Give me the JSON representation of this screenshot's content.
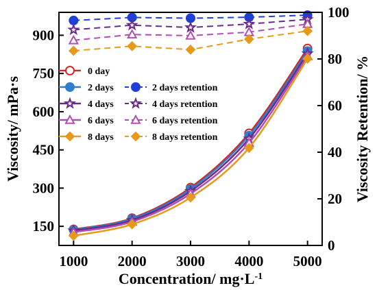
{
  "chart_data": {
    "type": "line",
    "xlabel": "Concentration/ mg·L",
    "xlabel_sup": "-1",
    "ylabel_left": "Viscosity/ mPa·s",
    "ylabel_right": "Viscosity Retention/ %",
    "x": [
      1000,
      2000,
      3000,
      4000,
      5000
    ],
    "x_ticks": [
      "1000",
      "2000",
      "3000",
      "4000",
      "5000"
    ],
    "xlim": [
      750,
      5250
    ],
    "ylim_left": [
      75,
      990
    ],
    "y_ticks_left": [
      "150",
      "300",
      "450",
      "600",
      "750",
      "900"
    ],
    "ylim_right": [
      0,
      100
    ],
    "y_ticks_right": [
      "0",
      "20",
      "40",
      "60",
      "80",
      "100"
    ],
    "grid": false,
    "legend_position": "center-left",
    "series": [
      {
        "name": "0 day",
        "axis": "left",
        "color": "#cc2a2a",
        "marker": "circle-open",
        "dash": false,
        "values": [
          138,
          182,
          302,
          515,
          848
        ]
      },
      {
        "name": "2 days",
        "axis": "left",
        "color": "#2c7fc8",
        "marker": "circle",
        "dash": false,
        "values": [
          136,
          179,
          296,
          506,
          838
        ]
      },
      {
        "name": "4 days",
        "axis": "left",
        "color": "#6a2a8a",
        "marker": "star-open",
        "dash": false,
        "values": [
          133,
          174,
          288,
          494,
          828
        ]
      },
      {
        "name": "6 days",
        "axis": "left",
        "color": "#b14cb5",
        "marker": "triangle-open",
        "dash": false,
        "values": [
          127,
          168,
          278,
          478,
          818
        ]
      },
      {
        "name": "8 days",
        "axis": "left",
        "color": "#e79a1a",
        "marker": "diamond",
        "dash": false,
        "values": [
          113,
          158,
          263,
          458,
          808
        ]
      },
      {
        "name": "2 days retention",
        "axis": "right",
        "color": "#1f3fd6",
        "marker": "circle",
        "dash": true,
        "values": [
          96.5,
          97.8,
          97.5,
          97.9,
          98.8
        ]
      },
      {
        "name": "4 days retention",
        "axis": "right",
        "color": "#6a2a8a",
        "marker": "star-open",
        "dash": true,
        "values": [
          92.5,
          94.5,
          93.5,
          95.0,
          97.0
        ]
      },
      {
        "name": "6 days retention",
        "axis": "right",
        "color": "#b14cb5",
        "marker": "triangle-open",
        "dash": true,
        "values": [
          88.0,
          90.5,
          90.0,
          91.5,
          95.0
        ]
      },
      {
        "name": "8 days retention",
        "axis": "right",
        "color": "#e79a1a",
        "marker": "diamond",
        "dash": true,
        "values": [
          83.5,
          85.5,
          84.0,
          88.5,
          92.0
        ]
      }
    ]
  }
}
